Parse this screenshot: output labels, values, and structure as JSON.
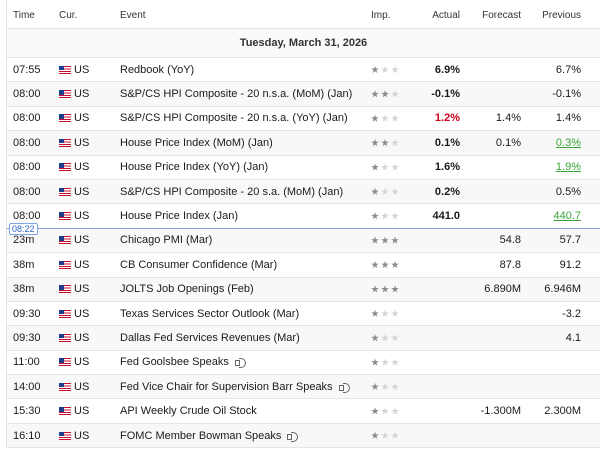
{
  "header": {
    "time": "Time",
    "cur": "Cur.",
    "event": "Event",
    "imp": "Imp.",
    "actual": "Actual",
    "forecast": "Forecast",
    "previous": "Previous"
  },
  "date_label": "Tuesday, March 31, 2026",
  "now_marker": "08:22",
  "colors": {
    "negative": "#d0021b",
    "positive": "#3aa335",
    "now_line": "#7da7e0"
  },
  "rows": [
    {
      "time": "07:55",
      "cur": "US",
      "event": "Redbook (YoY)",
      "imp": 1,
      "actual": "6.9%",
      "forecast": "",
      "previous": "6.7%",
      "actual_color": "",
      "previous_color": "",
      "speech": false
    },
    {
      "time": "08:00",
      "cur": "US",
      "event": "S&P/CS HPI Composite - 20 n.s.a. (MoM) (Jan)",
      "imp": 2,
      "actual": "-0.1%",
      "forecast": "",
      "previous": "-0.1%",
      "actual_color": "",
      "previous_color": "",
      "speech": false
    },
    {
      "time": "08:00",
      "cur": "US",
      "event": "S&P/CS HPI Composite - 20 n.s.a. (YoY) (Jan)",
      "imp": 1,
      "actual": "1.2%",
      "forecast": "1.4%",
      "previous": "1.4%",
      "actual_color": "red",
      "previous_color": "",
      "speech": false
    },
    {
      "time": "08:00",
      "cur": "US",
      "event": "House Price Index (MoM) (Jan)",
      "imp": 2,
      "actual": "0.1%",
      "forecast": "0.1%",
      "previous": "0.3%",
      "actual_color": "",
      "previous_color": "green",
      "speech": false
    },
    {
      "time": "08:00",
      "cur": "US",
      "event": "House Price Index (YoY) (Jan)",
      "imp": 1,
      "actual": "1.6%",
      "forecast": "",
      "previous": "1.9%",
      "actual_color": "",
      "previous_color": "green",
      "speech": false
    },
    {
      "time": "08:00",
      "cur": "US",
      "event": "S&P/CS HPI Composite - 20 s.a. (MoM) (Jan)",
      "imp": 1,
      "actual": "0.2%",
      "forecast": "",
      "previous": "0.5%",
      "actual_color": "",
      "previous_color": "",
      "speech": false
    },
    {
      "time": "08:00",
      "cur": "US",
      "event": "House Price Index (Jan)",
      "imp": 1,
      "actual": "441.0",
      "forecast": "",
      "previous": "440.7",
      "actual_color": "",
      "previous_color": "green",
      "speech": false
    },
    {
      "time": "23m",
      "cur": "US",
      "event": "Chicago PMI (Mar)",
      "imp": 3,
      "actual": "",
      "forecast": "54.8",
      "previous": "57.7",
      "actual_color": "",
      "previous_color": "",
      "speech": false
    },
    {
      "time": "38m",
      "cur": "US",
      "event": "CB Consumer Confidence (Mar)",
      "imp": 3,
      "actual": "",
      "forecast": "87.8",
      "previous": "91.2",
      "actual_color": "",
      "previous_color": "",
      "speech": false
    },
    {
      "time": "38m",
      "cur": "US",
      "event": "JOLTS Job Openings (Feb)",
      "imp": 3,
      "actual": "",
      "forecast": "6.890M",
      "previous": "6.946M",
      "actual_color": "",
      "previous_color": "",
      "speech": false
    },
    {
      "time": "09:30",
      "cur": "US",
      "event": "Texas Services Sector Outlook (Mar)",
      "imp": 1,
      "actual": "",
      "forecast": "",
      "previous": "-3.2",
      "actual_color": "",
      "previous_color": "",
      "speech": false
    },
    {
      "time": "09:30",
      "cur": "US",
      "event": "Dallas Fed Services Revenues (Mar)",
      "imp": 1,
      "actual": "",
      "forecast": "",
      "previous": "4.1",
      "actual_color": "",
      "previous_color": "",
      "speech": false
    },
    {
      "time": "11:00",
      "cur": "US",
      "event": "Fed Goolsbee Speaks",
      "imp": 1,
      "actual": "",
      "forecast": "",
      "previous": "",
      "actual_color": "",
      "previous_color": "",
      "speech": true
    },
    {
      "time": "14:00",
      "cur": "US",
      "event": "Fed Vice Chair for Supervision Barr Speaks",
      "imp": 1,
      "actual": "",
      "forecast": "",
      "previous": "",
      "actual_color": "",
      "previous_color": "",
      "speech": true
    },
    {
      "time": "15:30",
      "cur": "US",
      "event": "API Weekly Crude Oil Stock",
      "imp": 1,
      "actual": "",
      "forecast": "-1.300M",
      "previous": "2.300M",
      "actual_color": "",
      "previous_color": "",
      "speech": false
    },
    {
      "time": "16:10",
      "cur": "US",
      "event": "FOMC Member Bowman Speaks",
      "imp": 1,
      "actual": "",
      "forecast": "",
      "previous": "",
      "actual_color": "",
      "previous_color": "",
      "speech": true
    }
  ]
}
